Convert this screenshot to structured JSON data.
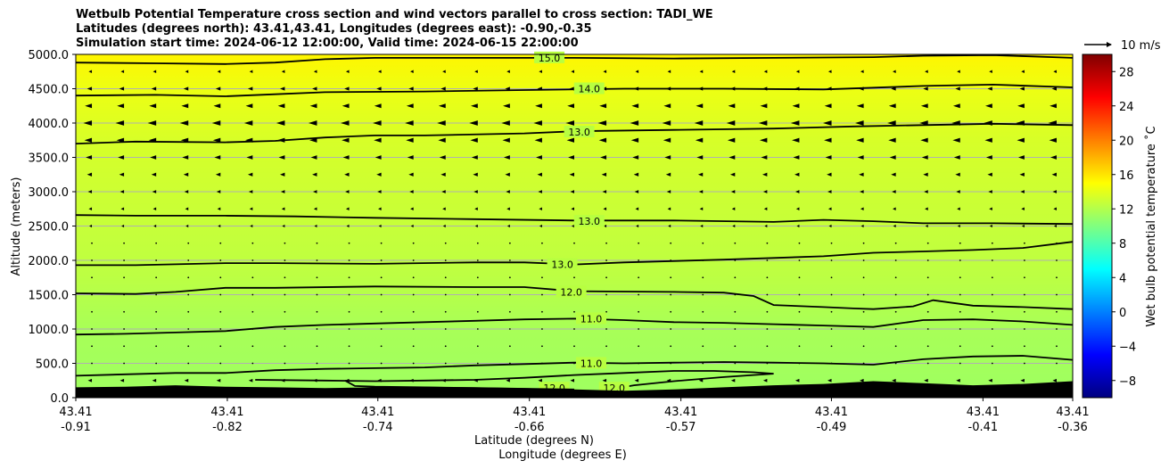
{
  "title_lines": [
    "Wetbulb Potential Temperature cross section and wind vectors parallel to cross section: TADI_WE",
    "Latitudes (degrees north): 43.41,43.41, Longitudes (degrees east): -0.90,-0.35",
    "Simulation start time: 2024-06-12 12:00:00, Valid time: 2024-06-15 22:00:00"
  ],
  "wind_key_label": "10 m/s",
  "chart_data": {
    "type": "heatmap",
    "title": "Wetbulb Potential Temperature cross section and wind vectors parallel to cross section: TADI_WE",
    "xlabel_lat": "Latitude (degrees N)",
    "xlabel_lon": "Longitude (degrees E)",
    "ylabel": "Altitude (meters)",
    "ylim": [
      0,
      5000
    ],
    "yticks": [
      "0.0",
      "500.0",
      "1000.0",
      "1500.0",
      "2000.0",
      "2500.0",
      "3000.0",
      "3500.0",
      "4000.0",
      "4500.0",
      "5000.0"
    ],
    "xticks": [
      {
        "pos": 0.0,
        "lat": "43.41",
        "lon": "-0.91"
      },
      {
        "pos": 0.152,
        "lat": "43.41",
        "lon": "-0.82"
      },
      {
        "pos": 0.303,
        "lat": "43.41",
        "lon": "-0.74"
      },
      {
        "pos": 0.455,
        "lat": "43.41",
        "lon": "-0.66"
      },
      {
        "pos": 0.607,
        "lat": "43.41",
        "lon": "-0.57"
      },
      {
        "pos": 0.758,
        "lat": "43.41",
        "lon": "-0.49"
      },
      {
        "pos": 0.91,
        "lat": "43.41",
        "lon": "-0.41"
      },
      {
        "pos": 1.0,
        "lat": "43.41",
        "lon": "-0.36"
      }
    ],
    "colorbar": {
      "label": "Wet bulb potential temperature $^\\circ$C",
      "label_display": "Wet bulb potential temperature ˚C",
      "vmin": -10,
      "vmax": 30,
      "ticks": [
        -8,
        -4,
        0,
        4,
        8,
        12,
        16,
        20,
        24,
        28
      ],
      "tick_labels": [
        "−8",
        "−4",
        "0",
        "4",
        "8",
        "12",
        "16",
        "20",
        "24",
        "28"
      ]
    },
    "background_gradient_C": [
      {
        "alt": 0,
        "value": 11.2
      },
      {
        "alt": 1000,
        "value": 11.6
      },
      {
        "alt": 1800,
        "value": 12.4
      },
      {
        "alt": 2700,
        "value": 12.9
      },
      {
        "alt": 3700,
        "value": 13.4
      },
      {
        "alt": 4500,
        "value": 14.3
      },
      {
        "alt": 5000,
        "value": 15.4
      }
    ],
    "contours": [
      {
        "label": "15.0",
        "label_at": [
          0.475,
          4950
        ],
        "points": [
          [
            0,
            4880
          ],
          [
            0.08,
            4870
          ],
          [
            0.15,
            4860
          ],
          [
            0.2,
            4880
          ],
          [
            0.25,
            4930
          ],
          [
            0.3,
            4950
          ],
          [
            0.4,
            4950
          ],
          [
            0.5,
            4950
          ],
          [
            0.6,
            4940
          ],
          [
            0.7,
            4950
          ],
          [
            0.8,
            4960
          ],
          [
            0.85,
            4980
          ],
          [
            0.92,
            4990
          ],
          [
            1.0,
            4950
          ]
        ]
      },
      {
        "label": "14.0",
        "label_at": [
          0.515,
          4500
        ],
        "points": [
          [
            0,
            4400
          ],
          [
            0.08,
            4410
          ],
          [
            0.15,
            4390
          ],
          [
            0.2,
            4420
          ],
          [
            0.25,
            4450
          ],
          [
            0.35,
            4460
          ],
          [
            0.45,
            4480
          ],
          [
            0.55,
            4500
          ],
          [
            0.65,
            4500
          ],
          [
            0.75,
            4490
          ],
          [
            0.85,
            4540
          ],
          [
            0.92,
            4560
          ],
          [
            1.0,
            4520
          ]
        ]
      },
      {
        "label": "13.0",
        "label_at": [
          0.505,
          3870
        ],
        "points": [
          [
            0,
            3700
          ],
          [
            0.06,
            3730
          ],
          [
            0.15,
            3720
          ],
          [
            0.2,
            3740
          ],
          [
            0.25,
            3790
          ],
          [
            0.3,
            3820
          ],
          [
            0.35,
            3820
          ],
          [
            0.45,
            3850
          ],
          [
            0.5,
            3880
          ],
          [
            0.6,
            3900
          ],
          [
            0.7,
            3920
          ],
          [
            0.78,
            3950
          ],
          [
            0.85,
            3970
          ],
          [
            0.92,
            3990
          ],
          [
            1.0,
            3970
          ]
        ]
      },
      {
        "label": "13.0",
        "label_at": [
          0.515,
          2570
        ],
        "points": [
          [
            0,
            2660
          ],
          [
            0.06,
            2650
          ],
          [
            0.15,
            2650
          ],
          [
            0.22,
            2640
          ],
          [
            0.3,
            2620
          ],
          [
            0.4,
            2600
          ],
          [
            0.5,
            2580
          ],
          [
            0.6,
            2580
          ],
          [
            0.7,
            2560
          ],
          [
            0.75,
            2590
          ],
          [
            0.8,
            2570
          ],
          [
            0.85,
            2540
          ],
          [
            0.92,
            2540
          ],
          [
            1.0,
            2530
          ]
        ]
      },
      {
        "label": "13.0",
        "label_at": [
          0.488,
          1940
        ],
        "points": [
          [
            0,
            1930
          ],
          [
            0.06,
            1930
          ],
          [
            0.15,
            1960
          ],
          [
            0.2,
            1960
          ],
          [
            0.3,
            1950
          ],
          [
            0.4,
            1970
          ],
          [
            0.45,
            1970
          ],
          [
            0.5,
            1940
          ],
          [
            0.55,
            1970
          ],
          [
            0.65,
            2010
          ],
          [
            0.75,
            2060
          ],
          [
            0.8,
            2110
          ],
          [
            0.85,
            2130
          ],
          [
            0.9,
            2150
          ],
          [
            0.95,
            2180
          ],
          [
            1.0,
            2270
          ]
        ]
      },
      {
        "label": "12.0",
        "label_at": [
          0.497,
          1540
        ],
        "points": [
          [
            0,
            1520
          ],
          [
            0.06,
            1510
          ],
          [
            0.1,
            1540
          ],
          [
            0.15,
            1600
          ],
          [
            0.2,
            1600
          ],
          [
            0.3,
            1620
          ],
          [
            0.4,
            1610
          ],
          [
            0.45,
            1610
          ],
          [
            0.5,
            1550
          ],
          [
            0.6,
            1540
          ],
          [
            0.65,
            1530
          ],
          [
            0.68,
            1480
          ],
          [
            0.7,
            1350
          ],
          [
            0.75,
            1320
          ],
          [
            0.78,
            1300
          ],
          [
            0.8,
            1290
          ],
          [
            0.84,
            1330
          ],
          [
            0.86,
            1420
          ],
          [
            0.9,
            1340
          ],
          [
            0.95,
            1320
          ],
          [
            1.0,
            1290
          ]
        ]
      },
      {
        "label": "11.0",
        "label_at": [
          0.517,
          1150
        ],
        "points": [
          [
            0,
            920
          ],
          [
            0.05,
            930
          ],
          [
            0.1,
            950
          ],
          [
            0.15,
            970
          ],
          [
            0.2,
            1030
          ],
          [
            0.25,
            1060
          ],
          [
            0.3,
            1080
          ],
          [
            0.35,
            1100
          ],
          [
            0.4,
            1120
          ],
          [
            0.45,
            1140
          ],
          [
            0.5,
            1150
          ],
          [
            0.55,
            1130
          ],
          [
            0.6,
            1100
          ],
          [
            0.65,
            1090
          ],
          [
            0.7,
            1070
          ],
          [
            0.75,
            1050
          ],
          [
            0.8,
            1030
          ],
          [
            0.85,
            1130
          ],
          [
            0.9,
            1140
          ],
          [
            0.95,
            1110
          ],
          [
            1.0,
            1060
          ]
        ]
      },
      {
        "label": "11.0",
        "label_at": [
          0.517,
          500
        ],
        "points": [
          [
            0,
            320
          ],
          [
            0.05,
            340
          ],
          [
            0.1,
            360
          ],
          [
            0.15,
            360
          ],
          [
            0.2,
            400
          ],
          [
            0.25,
            420
          ],
          [
            0.3,
            430
          ],
          [
            0.35,
            440
          ],
          [
            0.4,
            470
          ],
          [
            0.45,
            490
          ],
          [
            0.5,
            510
          ],
          [
            0.55,
            500
          ],
          [
            0.6,
            510
          ],
          [
            0.65,
            520
          ],
          [
            0.7,
            510
          ],
          [
            0.75,
            500
          ],
          [
            0.8,
            480
          ],
          [
            0.85,
            560
          ],
          [
            0.9,
            600
          ],
          [
            0.95,
            610
          ],
          [
            1.0,
            550
          ]
        ]
      },
      {
        "label": "12.0",
        "label_at": [
          0.48,
          140
        ],
        "points": [
          [
            0.18,
            260
          ],
          [
            0.25,
            250
          ],
          [
            0.3,
            240
          ],
          [
            0.35,
            250
          ],
          [
            0.4,
            260
          ],
          [
            0.45,
            290
          ],
          [
            0.5,
            330
          ],
          [
            0.55,
            360
          ],
          [
            0.6,
            390
          ],
          [
            0.64,
            390
          ],
          [
            0.68,
            370
          ],
          [
            0.7,
            350
          ],
          [
            0.65,
            300
          ],
          [
            0.6,
            240
          ],
          [
            0.56,
            180
          ],
          [
            0.54,
            130
          ]
        ]
      },
      {
        "label": "12.0",
        "label_at": [
          0.54,
          140
        ],
        "points": [
          [
            0.27,
            250
          ],
          [
            0.28,
            170
          ],
          [
            0.3,
            160
          ],
          [
            0.35,
            150
          ],
          [
            0.4,
            140
          ],
          [
            0.45,
            130
          ],
          [
            0.5,
            120
          ]
        ]
      }
    ],
    "terrain": [
      [
        0,
        150
      ],
      [
        0.05,
        160
      ],
      [
        0.1,
        180
      ],
      [
        0.15,
        160
      ],
      [
        0.2,
        150
      ],
      [
        0.25,
        140
      ],
      [
        0.3,
        150
      ],
      [
        0.35,
        160
      ],
      [
        0.4,
        150
      ],
      [
        0.45,
        140
      ],
      [
        0.5,
        120
      ],
      [
        0.55,
        100
      ],
      [
        0.6,
        120
      ],
      [
        0.65,
        150
      ],
      [
        0.7,
        180
      ],
      [
        0.75,
        200
      ],
      [
        0.8,
        240
      ],
      [
        0.85,
        210
      ],
      [
        0.9,
        180
      ],
      [
        0.95,
        200
      ],
      [
        1.0,
        240
      ]
    ],
    "wind_vectors": {
      "direction": "westward (negative, parallel to section)",
      "levels_m": [
        250,
        500,
        750,
        1000,
        1250,
        1500,
        1750,
        2000,
        2250,
        2500,
        2750,
        3000,
        3250,
        3500,
        3750,
        4000,
        4250,
        4500,
        4750
      ],
      "speeds_ms": [
        1.5,
        0.8,
        0.4,
        0.3,
        0.3,
        0.4,
        0.6,
        0.8,
        0.9,
        1.0,
        1.2,
        1.5,
        1.8,
        2.3,
        2.8,
        3.2,
        2.6,
        1.8,
        1.2
      ],
      "reference_ms": 10
    }
  }
}
